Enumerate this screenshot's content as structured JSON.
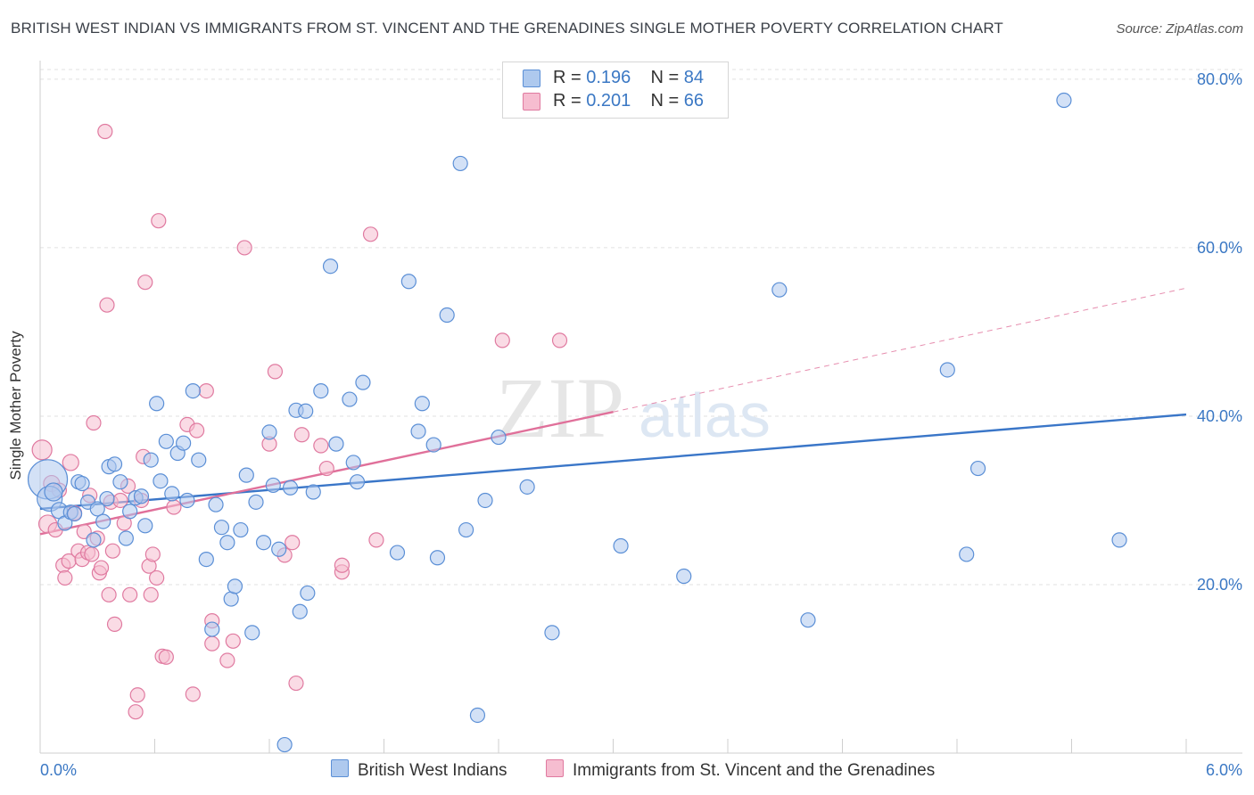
{
  "header": {
    "title": "BRITISH WEST INDIAN VS IMMIGRANTS FROM ST. VINCENT AND THE GRENADINES SINGLE MOTHER POVERTY CORRELATION CHART",
    "source": "Source: ZipAtlas.com"
  },
  "watermark": {
    "zip": "ZIP",
    "atlas": "atlas"
  },
  "legend": {
    "rows": [
      {
        "r_label": "R =",
        "r_value": "0.196",
        "n_label": "N =",
        "n_value": "84",
        "color": "#aec9ee"
      },
      {
        "r_label": "R =",
        "r_value": "0.201",
        "n_label": "N =",
        "n_value": "66",
        "color": "#f6bdd0"
      }
    ]
  },
  "colors": {
    "blue_fill": "#aec9ee",
    "blue_stroke": "#5b8fd6",
    "blue_line": "#3a76c8",
    "pink_fill": "#f6bdd0",
    "pink_stroke": "#e07aa0",
    "pink_line": "#e0709a",
    "axis_text": "#3b78c4",
    "grid": "#e1e1e1"
  },
  "chart_data": {
    "type": "scatter",
    "title": "BRITISH WEST INDIAN VS IMMIGRANTS FROM ST. VINCENT AND THE GRENADINES SINGLE MOTHER POVERTY CORRELATION CHART",
    "xlabel": "",
    "ylabel": "Single Mother Poverty",
    "xlim": [
      0,
      6
    ],
    "ylim": [
      0,
      82
    ],
    "x_tick_labels": [
      "0.0%",
      "6.0%"
    ],
    "y_ticks": [
      20,
      40,
      60,
      80
    ],
    "y_tick_labels": [
      "20.0%",
      "40.0%",
      "60.0%",
      "80.0%"
    ],
    "grid": true,
    "legend_position": "top-center",
    "series": [
      {
        "name": "British West Indians",
        "color": "#aec9ee",
        "trend": {
          "x": [
            0,
            6
          ],
          "y": [
            29.0,
            40.2
          ]
        },
        "points": [
          {
            "x": 0.04,
            "y": 32.5,
            "s": 22
          },
          {
            "x": 0.05,
            "y": 30.2,
            "s": 14
          },
          {
            "x": 0.07,
            "y": 31.0,
            "s": 10
          },
          {
            "x": 0.1,
            "y": 28.8,
            "s": 9
          },
          {
            "x": 0.13,
            "y": 27.3,
            "s": 8
          },
          {
            "x": 0.16,
            "y": 28.6,
            "s": 8
          },
          {
            "x": 0.18,
            "y": 28.4,
            "s": 8
          },
          {
            "x": 0.2,
            "y": 32.2,
            "s": 8
          },
          {
            "x": 0.22,
            "y": 32.0,
            "s": 8
          },
          {
            "x": 0.25,
            "y": 29.8,
            "s": 8
          },
          {
            "x": 0.28,
            "y": 25.3,
            "s": 8
          },
          {
            "x": 0.3,
            "y": 29.0,
            "s": 8
          },
          {
            "x": 0.33,
            "y": 27.5,
            "s": 8
          },
          {
            "x": 0.36,
            "y": 34.0,
            "s": 8
          },
          {
            "x": 0.39,
            "y": 34.3,
            "s": 8
          },
          {
            "x": 0.42,
            "y": 32.2,
            "s": 8
          },
          {
            "x": 0.45,
            "y": 25.5,
            "s": 8
          },
          {
            "x": 0.47,
            "y": 28.7,
            "s": 8
          },
          {
            "x": 0.5,
            "y": 30.3,
            "s": 8
          },
          {
            "x": 0.53,
            "y": 30.5,
            "s": 8
          },
          {
            "x": 0.55,
            "y": 27.0,
            "s": 8
          },
          {
            "x": 0.58,
            "y": 34.8,
            "s": 8
          },
          {
            "x": 0.61,
            "y": 41.5,
            "s": 8
          },
          {
            "x": 0.63,
            "y": 32.3,
            "s": 8
          },
          {
            "x": 0.66,
            "y": 37.0,
            "s": 8
          },
          {
            "x": 0.69,
            "y": 30.8,
            "s": 8
          },
          {
            "x": 0.72,
            "y": 35.6,
            "s": 8
          },
          {
            "x": 0.75,
            "y": 36.8,
            "s": 8
          },
          {
            "x": 0.77,
            "y": 30.0,
            "s": 8
          },
          {
            "x": 0.8,
            "y": 43.0,
            "s": 8
          },
          {
            "x": 0.83,
            "y": 34.8,
            "s": 8
          },
          {
            "x": 0.87,
            "y": 23.0,
            "s": 8
          },
          {
            "x": 0.9,
            "y": 14.7,
            "s": 8
          },
          {
            "x": 0.92,
            "y": 29.5,
            "s": 8
          },
          {
            "x": 0.95,
            "y": 26.8,
            "s": 8
          },
          {
            "x": 0.98,
            "y": 25.0,
            "s": 8
          },
          {
            "x": 1.0,
            "y": 18.3,
            "s": 8
          },
          {
            "x": 1.02,
            "y": 19.8,
            "s": 8
          },
          {
            "x": 1.05,
            "y": 26.5,
            "s": 8
          },
          {
            "x": 1.08,
            "y": 33.0,
            "s": 8
          },
          {
            "x": 1.11,
            "y": 14.3,
            "s": 8
          },
          {
            "x": 1.13,
            "y": 29.8,
            "s": 8
          },
          {
            "x": 1.17,
            "y": 25.0,
            "s": 8
          },
          {
            "x": 1.2,
            "y": 38.1,
            "s": 8
          },
          {
            "x": 1.22,
            "y": 31.8,
            "s": 8
          },
          {
            "x": 1.25,
            "y": 24.2,
            "s": 8
          },
          {
            "x": 1.28,
            "y": 1.0,
            "s": 8
          },
          {
            "x": 1.31,
            "y": 31.5,
            "s": 8
          },
          {
            "x": 1.34,
            "y": 40.7,
            "s": 8
          },
          {
            "x": 1.36,
            "y": 16.8,
            "s": 8
          },
          {
            "x": 1.39,
            "y": 40.6,
            "s": 8
          },
          {
            "x": 1.4,
            "y": 19.0,
            "s": 8
          },
          {
            "x": 1.43,
            "y": 31.0,
            "s": 8
          },
          {
            "x": 1.47,
            "y": 43.0,
            "s": 8
          },
          {
            "x": 1.52,
            "y": 57.8,
            "s": 8
          },
          {
            "x": 1.55,
            "y": 36.7,
            "s": 8
          },
          {
            "x": 1.62,
            "y": 42.0,
            "s": 8
          },
          {
            "x": 1.64,
            "y": 34.5,
            "s": 8
          },
          {
            "x": 1.66,
            "y": 32.2,
            "s": 8
          },
          {
            "x": 1.69,
            "y": 44.0,
            "s": 8
          },
          {
            "x": 1.87,
            "y": 23.8,
            "s": 8
          },
          {
            "x": 1.93,
            "y": 56.0,
            "s": 8
          },
          {
            "x": 1.98,
            "y": 38.2,
            "s": 8
          },
          {
            "x": 2.0,
            "y": 41.5,
            "s": 8
          },
          {
            "x": 2.06,
            "y": 36.6,
            "s": 8
          },
          {
            "x": 2.08,
            "y": 23.2,
            "s": 8
          },
          {
            "x": 2.13,
            "y": 52.0,
            "s": 8
          },
          {
            "x": 2.2,
            "y": 70.0,
            "s": 8
          },
          {
            "x": 2.23,
            "y": 26.5,
            "s": 8
          },
          {
            "x": 2.29,
            "y": 4.5,
            "s": 8
          },
          {
            "x": 2.33,
            "y": 30.0,
            "s": 8
          },
          {
            "x": 2.4,
            "y": 37.5,
            "s": 8
          },
          {
            "x": 2.55,
            "y": 31.6,
            "s": 8
          },
          {
            "x": 2.68,
            "y": 14.3,
            "s": 8
          },
          {
            "x": 3.04,
            "y": 24.6,
            "s": 8
          },
          {
            "x": 3.37,
            "y": 21.0,
            "s": 8
          },
          {
            "x": 3.87,
            "y": 55.0,
            "s": 8
          },
          {
            "x": 4.02,
            "y": 15.8,
            "s": 8
          },
          {
            "x": 4.75,
            "y": 45.5,
            "s": 8
          },
          {
            "x": 4.85,
            "y": 23.6,
            "s": 8
          },
          {
            "x": 4.91,
            "y": 33.8,
            "s": 8
          },
          {
            "x": 5.36,
            "y": 77.5,
            "s": 8
          },
          {
            "x": 5.65,
            "y": 25.3,
            "s": 8
          },
          {
            "x": 0.35,
            "y": 30.2,
            "s": 8
          }
        ]
      },
      {
        "name": "Immigrants from St. Vincent and the Grenadines",
        "color": "#f6bdd0",
        "trend": {
          "x": [
            0,
            3.0,
            6
          ],
          "y": [
            26.0,
            40.5,
            55.2
          ]
        },
        "points": [
          {
            "x": 0.01,
            "y": 36.0,
            "s": 11
          },
          {
            "x": 0.04,
            "y": 27.2,
            "s": 10
          },
          {
            "x": 0.06,
            "y": 32.0,
            "s": 9
          },
          {
            "x": 0.08,
            "y": 26.5,
            "s": 8
          },
          {
            "x": 0.1,
            "y": 31.2,
            "s": 8
          },
          {
            "x": 0.12,
            "y": 22.3,
            "s": 8
          },
          {
            "x": 0.13,
            "y": 20.8,
            "s": 8
          },
          {
            "x": 0.15,
            "y": 22.8,
            "s": 8
          },
          {
            "x": 0.16,
            "y": 34.5,
            "s": 9
          },
          {
            "x": 0.18,
            "y": 28.5,
            "s": 8
          },
          {
            "x": 0.2,
            "y": 24.0,
            "s": 8
          },
          {
            "x": 0.22,
            "y": 23.0,
            "s": 8
          },
          {
            "x": 0.23,
            "y": 26.3,
            "s": 8
          },
          {
            "x": 0.25,
            "y": 23.8,
            "s": 8
          },
          {
            "x": 0.26,
            "y": 30.6,
            "s": 8
          },
          {
            "x": 0.27,
            "y": 23.6,
            "s": 8
          },
          {
            "x": 0.28,
            "y": 39.2,
            "s": 8
          },
          {
            "x": 0.3,
            "y": 25.5,
            "s": 8
          },
          {
            "x": 0.31,
            "y": 21.4,
            "s": 8
          },
          {
            "x": 0.32,
            "y": 22.0,
            "s": 8
          },
          {
            "x": 0.34,
            "y": 73.8,
            "s": 8
          },
          {
            "x": 0.35,
            "y": 53.2,
            "s": 8
          },
          {
            "x": 0.36,
            "y": 18.8,
            "s": 8
          },
          {
            "x": 0.37,
            "y": 29.8,
            "s": 8
          },
          {
            "x": 0.38,
            "y": 24.0,
            "s": 8
          },
          {
            "x": 0.39,
            "y": 15.3,
            "s": 8
          },
          {
            "x": 0.42,
            "y": 30.0,
            "s": 8
          },
          {
            "x": 0.44,
            "y": 27.3,
            "s": 8
          },
          {
            "x": 0.46,
            "y": 31.7,
            "s": 8
          },
          {
            "x": 0.47,
            "y": 18.8,
            "s": 8
          },
          {
            "x": 0.5,
            "y": 4.9,
            "s": 8
          },
          {
            "x": 0.51,
            "y": 6.9,
            "s": 8
          },
          {
            "x": 0.53,
            "y": 30.0,
            "s": 8
          },
          {
            "x": 0.54,
            "y": 35.2,
            "s": 8
          },
          {
            "x": 0.55,
            "y": 55.9,
            "s": 8
          },
          {
            "x": 0.57,
            "y": 22.2,
            "s": 8
          },
          {
            "x": 0.58,
            "y": 18.8,
            "s": 8
          },
          {
            "x": 0.59,
            "y": 23.6,
            "s": 8
          },
          {
            "x": 0.61,
            "y": 20.8,
            "s": 8
          },
          {
            "x": 0.62,
            "y": 63.2,
            "s": 8
          },
          {
            "x": 0.64,
            "y": 11.5,
            "s": 8
          },
          {
            "x": 0.66,
            "y": 11.4,
            "s": 8
          },
          {
            "x": 0.7,
            "y": 29.2,
            "s": 8
          },
          {
            "x": 0.77,
            "y": 39.0,
            "s": 8
          },
          {
            "x": 0.8,
            "y": 7.0,
            "s": 8
          },
          {
            "x": 0.82,
            "y": 38.3,
            "s": 8
          },
          {
            "x": 0.87,
            "y": 43.0,
            "s": 8
          },
          {
            "x": 0.9,
            "y": 13.0,
            "s": 8
          },
          {
            "x": 0.9,
            "y": 15.7,
            "s": 8
          },
          {
            "x": 0.98,
            "y": 11.0,
            "s": 8
          },
          {
            "x": 1.01,
            "y": 13.3,
            "s": 8
          },
          {
            "x": 1.07,
            "y": 60.0,
            "s": 8
          },
          {
            "x": 1.2,
            "y": 36.7,
            "s": 8
          },
          {
            "x": 1.23,
            "y": 45.3,
            "s": 8
          },
          {
            "x": 1.28,
            "y": 23.5,
            "s": 8
          },
          {
            "x": 1.32,
            "y": 25.0,
            "s": 8
          },
          {
            "x": 1.34,
            "y": 8.3,
            "s": 8
          },
          {
            "x": 1.37,
            "y": 37.8,
            "s": 8
          },
          {
            "x": 1.47,
            "y": 36.5,
            "s": 8
          },
          {
            "x": 1.5,
            "y": 33.8,
            "s": 8
          },
          {
            "x": 1.58,
            "y": 21.5,
            "s": 8
          },
          {
            "x": 1.58,
            "y": 22.3,
            "s": 8
          },
          {
            "x": 1.73,
            "y": 61.6,
            "s": 8
          },
          {
            "x": 1.76,
            "y": 25.3,
            "s": 8
          },
          {
            "x": 2.42,
            "y": 49.0,
            "s": 8
          },
          {
            "x": 2.72,
            "y": 49.0,
            "s": 8
          }
        ]
      }
    ]
  }
}
